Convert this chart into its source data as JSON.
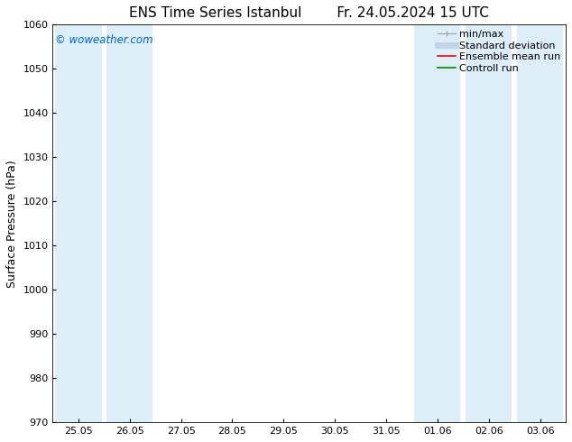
{
  "title_left": "ENS Time Series Istanbul",
  "title_right": "Fr. 24.05.2024 15 UTC",
  "ylabel": "Surface Pressure (hPa)",
  "ylim": [
    970,
    1060
  ],
  "yticks": [
    970,
    980,
    990,
    1000,
    1010,
    1020,
    1030,
    1040,
    1050,
    1060
  ],
  "xtick_labels": [
    "25.05",
    "26.05",
    "27.05",
    "28.05",
    "29.05",
    "30.05",
    "31.05",
    "01.06",
    "02.06",
    "03.06"
  ],
  "watermark": "© woweather.com",
  "watermark_color": "#0066cc",
  "background_color": "#ffffff",
  "shaded_band_color": "#ddeef8",
  "shaded_columns": [
    0,
    1,
    7,
    8,
    9
  ],
  "legend_entries": [
    "min/max",
    "Standard deviation",
    "Ensemble mean run",
    "Controll run"
  ],
  "legend_line_colors": [
    "#aaaaaa",
    "#c8d8e8",
    "#ff0000",
    "#008800"
  ],
  "title_fontsize": 11,
  "ylabel_fontsize": 9,
  "tick_fontsize": 8,
  "legend_fontsize": 8
}
